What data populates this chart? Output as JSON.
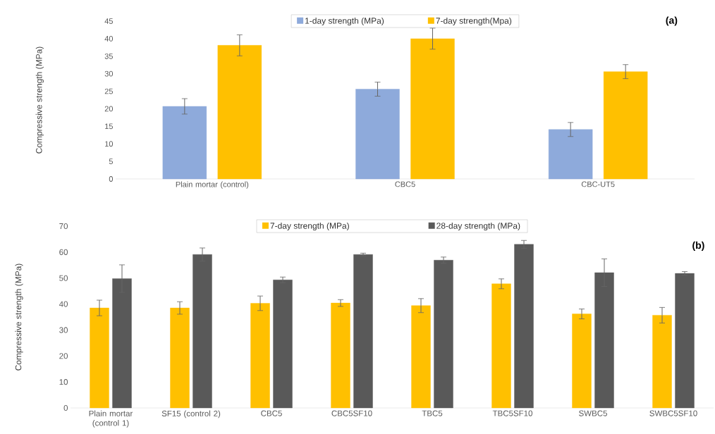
{
  "chart_data": [
    {
      "type": "bar",
      "ylabel": "Compressive strength (MPa)",
      "categories": [
        "Plain mortar (control)",
        "CBC5",
        "CBC-UT5"
      ],
      "series": [
        {
          "name": "1-day strength (MPa)",
          "color": "#8eaadb",
          "values": [
            20.7,
            25.6,
            14.1
          ],
          "errors": [
            2.2,
            2.0,
            2.0
          ]
        },
        {
          "name": "7-day strength(Mpa)",
          "color": "#ffc000",
          "values": [
            38.1,
            40.0,
            30.6
          ],
          "errors": [
            3.0,
            3.0,
            2.0
          ]
        }
      ],
      "ylim": [
        0,
        45
      ],
      "yticks": [
        0,
        5,
        10,
        15,
        20,
        25,
        30,
        35,
        40,
        45
      ],
      "grid": false,
      "legend": "top",
      "annotations": [
        "(a)"
      ]
    },
    {
      "type": "bar",
      "ylabel": "Compressive strength (MPa)",
      "categories": [
        "Plain mortar (control 1)",
        "SF15 (control 2)",
        "CBC5",
        "CBC5SF10",
        "TBC5",
        "TBC5SF10",
        "SWBC5",
        "SWBC5SF10"
      ],
      "series": [
        {
          "name": "7-day strength (MPa)",
          "color": "#ffc000",
          "values": [
            38.5,
            38.5,
            40.3,
            40.4,
            39.4,
            47.8,
            36.2,
            35.7
          ],
          "errors": [
            3.0,
            2.4,
            2.8,
            1.3,
            2.7,
            1.9,
            1.9,
            3.0
          ]
        },
        {
          "name": "28-day strength (MPa)",
          "color": "#595959",
          "values": [
            49.8,
            59.1,
            49.3,
            59.1,
            56.9,
            63.0,
            52.1,
            51.8
          ],
          "errors": [
            5.3,
            2.5,
            1.1,
            0.5,
            1.2,
            1.5,
            5.3,
            0.7
          ]
        }
      ],
      "ylim": [
        0,
        70
      ],
      "yticks": [
        0,
        10,
        20,
        30,
        40,
        50,
        60,
        70
      ],
      "grid": false,
      "legend": "top",
      "annotations": [
        "(b)"
      ]
    }
  ]
}
